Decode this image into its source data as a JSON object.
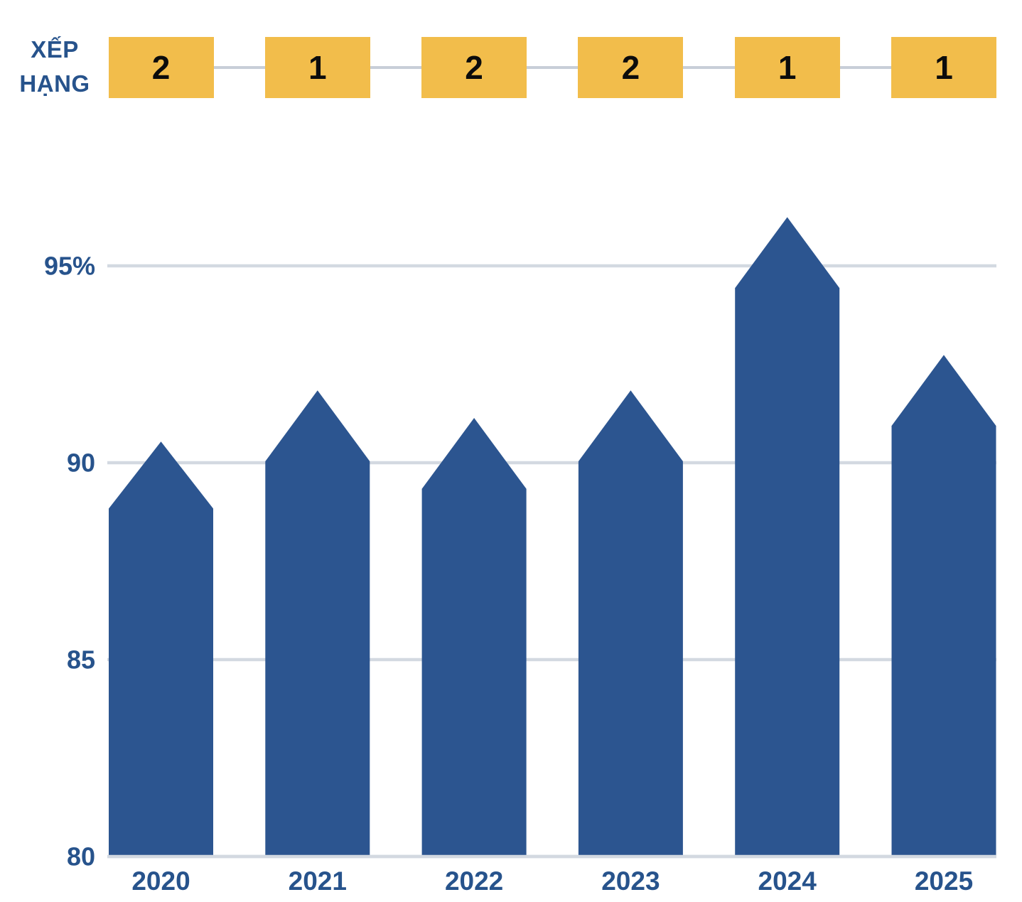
{
  "header": {
    "ranking_label_line1": "XẾP",
    "ranking_label_line2": "HẠNG",
    "ranks": [
      "2",
      "1",
      "2",
      "2",
      "1",
      "1"
    ]
  },
  "chart_data": {
    "type": "bar",
    "bar_shape": "pentagon-pointed-top",
    "title": "",
    "xlabel": "",
    "ylabel": "",
    "categories": [
      "2020",
      "2021",
      "2022",
      "2023",
      "2024",
      "2025"
    ],
    "series": [
      {
        "name": "value-percent-tip",
        "values": [
          90.5,
          91.8,
          91.1,
          91.8,
          96.2,
          92.7
        ]
      },
      {
        "name": "value-percent-shoulder",
        "values": [
          88.8,
          90.0,
          89.3,
          90.0,
          94.4,
          90.9
        ]
      },
      {
        "name": "xep-hang-rank",
        "values": [
          2,
          1,
          2,
          2,
          1,
          1
        ]
      }
    ],
    "ytick_labels": [
      "95%",
      "90",
      "85",
      "80"
    ],
    "ytick_values": [
      95,
      90,
      85,
      80
    ],
    "ylim": [
      80,
      97
    ],
    "grid": true,
    "legend": "none",
    "colors": {
      "bar": "#2C5590",
      "axis_text": "#27538C",
      "gridline": "#D3D9E1",
      "rank_box": "#F2BD4B",
      "rank_digit": "#0C0C0C",
      "rank_connector": "#C8CED8"
    }
  }
}
